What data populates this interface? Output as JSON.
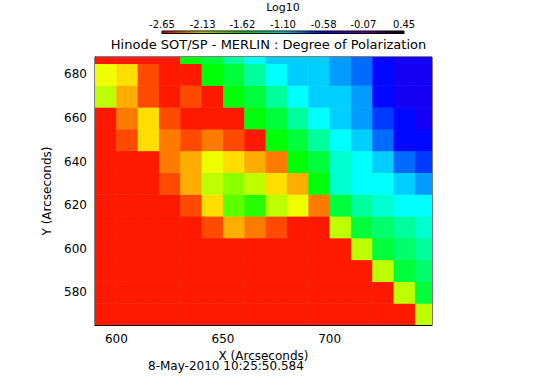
{
  "chart_data": {
    "type": "heatmap",
    "title": "Hinode SOT/SP - MERLIN : Degree of Polarization",
    "annotations": [
      "8-May-2010 10:25:50.584"
    ],
    "x_label": "X (Arcseconds)",
    "y_label": "Y (Arcseconds)",
    "xlim": [
      590,
      748
    ],
    "xticks": [
      600,
      650,
      700
    ],
    "ylim": [
      565,
      688
    ],
    "yticks": [
      580,
      600,
      620,
      640,
      660,
      680
    ],
    "x": [
      595,
      605,
      615,
      625,
      635,
      645,
      655,
      665,
      675,
      685,
      695,
      705,
      715,
      725,
      735,
      745
    ],
    "y": [
      570,
      580,
      590,
      600,
      610,
      620,
      630,
      640,
      650,
      660,
      670,
      680,
      690
    ],
    "cells": [
      [
        -2.6,
        -2.6,
        -2.6,
        -2.6,
        -2.6,
        -2.6,
        -2.6,
        -2.6,
        -2.6,
        -2.6,
        -2.6,
        -2.6,
        -2.6,
        -2.6,
        -2.6,
        -2.0
      ],
      [
        -2.6,
        -2.6,
        -2.6,
        -2.6,
        -2.6,
        -2.6,
        -2.6,
        -2.6,
        -2.6,
        -2.6,
        -2.6,
        -2.6,
        -2.6,
        -2.6,
        -2.0,
        -1.5
      ],
      [
        -2.6,
        -2.6,
        -2.6,
        -2.6,
        -2.6,
        -2.6,
        -2.6,
        -2.6,
        -2.6,
        -2.6,
        -2.6,
        -2.6,
        -2.6,
        -2.0,
        -1.5,
        -1.4
      ],
      [
        -2.6,
        -2.6,
        -2.6,
        -2.6,
        -2.6,
        -2.6,
        -2.6,
        -2.6,
        -2.6,
        -2.6,
        -2.6,
        -2.6,
        -2.0,
        -1.5,
        -1.4,
        -1.3
      ],
      [
        -2.6,
        -2.6,
        -2.6,
        -2.6,
        -2.6,
        -2.5,
        -2.3,
        -2.4,
        -2.5,
        -2.6,
        -2.6,
        -2.0,
        -1.5,
        -1.4,
        -1.3,
        -1.2
      ],
      [
        -2.6,
        -2.6,
        -2.6,
        -2.6,
        -2.5,
        -2.2,
        -1.8,
        -1.7,
        -2.0,
        -2.1,
        -2.4,
        -1.5,
        -1.3,
        -1.2,
        -1.1,
        -1.1
      ],
      [
        -2.6,
        -2.6,
        -2.6,
        -2.5,
        -2.3,
        -2.0,
        -1.9,
        -2.0,
        -2.2,
        -2.3,
        -1.6,
        -1.2,
        -1.1,
        -1.1,
        -1.0,
        -0.9
      ],
      [
        -2.6,
        -2.6,
        -2.6,
        -2.4,
        -2.3,
        -2.1,
        -2.2,
        -2.3,
        -2.4,
        -1.6,
        -1.5,
        -1.2,
        -1.1,
        -1.0,
        -0.8,
        -0.7
      ],
      [
        -2.6,
        -2.5,
        -2.2,
        -2.4,
        -2.5,
        -2.4,
        -2.5,
        -2.6,
        -1.6,
        -1.5,
        -1.3,
        -1.1,
        -1.0,
        -0.8,
        -0.6,
        -0.6
      ],
      [
        -2.6,
        -2.4,
        -2.2,
        -2.5,
        -2.6,
        -2.6,
        -2.6,
        -1.6,
        -1.5,
        -1.3,
        -1.1,
        -1.0,
        -0.9,
        -0.7,
        -0.6,
        -0.5
      ],
      [
        -2.0,
        -2.3,
        -2.5,
        -2.6,
        -2.5,
        -2.6,
        -1.6,
        -1.5,
        -1.3,
        -1.1,
        -1.0,
        -1.0,
        -0.9,
        -0.6,
        -0.5,
        -0.5
      ],
      [
        -2.1,
        -2.2,
        -2.5,
        -2.6,
        -2.6,
        -1.6,
        -1.5,
        -1.3,
        -1.1,
        -1.0,
        -1.0,
        -0.9,
        -0.8,
        -0.6,
        -0.5,
        -0.5
      ],
      [
        -2.6,
        -2.6,
        -2.6,
        -2.6,
        -1.6,
        -1.5,
        -1.3,
        -1.1,
        -1.0,
        -1.0,
        -1.0,
        -0.9,
        -0.8,
        -0.6,
        -0.5,
        -0.5
      ]
    ],
    "colorbar": {
      "label": "Log10",
      "range": [
        -2.65,
        0.45
      ],
      "ticks": [
        -2.65,
        -2.13,
        -1.62,
        {
          "value": -1.1,
          "label": "-1.10"
        },
        -0.58,
        -0.07,
        0.45
      ]
    }
  }
}
